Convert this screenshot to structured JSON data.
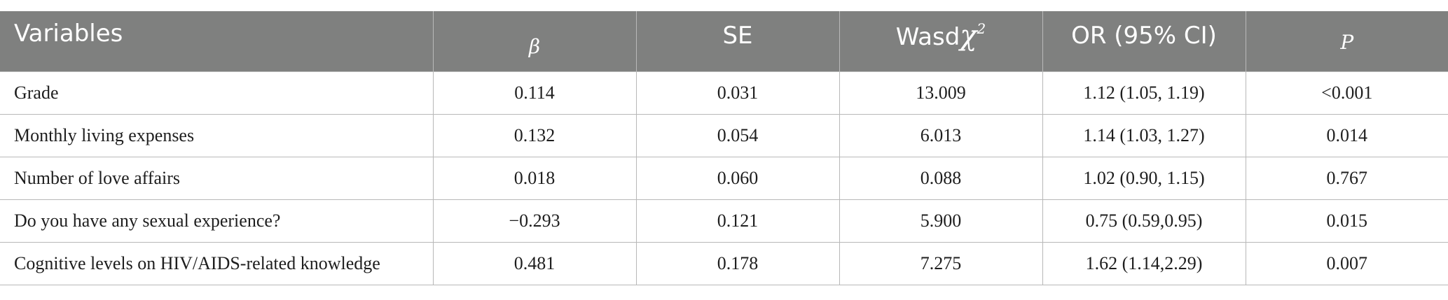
{
  "table": {
    "headers": [
      {
        "label": "Variables"
      },
      {
        "label": "β"
      },
      {
        "label": "SE"
      },
      {
        "label": "Wasd",
        "symbol": "χ",
        "superscript": "2"
      },
      {
        "label": "OR (95% CI)"
      },
      {
        "label": "P"
      }
    ],
    "rows": [
      {
        "variable": "Grade",
        "beta": "0.114",
        "se": "0.031",
        "wasd": "13.009",
        "or_ci": "1.12 (1.05, 1.19)",
        "p": "<0.001"
      },
      {
        "variable": "Monthly living expenses",
        "beta": "0.132",
        "se": "0.054",
        "wasd": "6.013",
        "or_ci": "1.14 (1.03, 1.27)",
        "p": "0.014"
      },
      {
        "variable": "Number of love affairs",
        "beta": "0.018",
        "se": "0.060",
        "wasd": "0.088",
        "or_ci": "1.02 (0.90, 1.15)",
        "p": "0.767"
      },
      {
        "variable": "Do you have any sexual experience?",
        "beta": "−0.293",
        "se": "0.121",
        "wasd": "5.900",
        "or_ci": "0.75 (0.59,0.95)",
        "p": "0.015"
      },
      {
        "variable": "Cognitive levels on HIV/AIDS-related knowledge",
        "beta": "0.481",
        "se": "0.178",
        "wasd": "7.275",
        "or_ci": "1.62 (1.14,2.29)",
        "p": "0.007"
      }
    ]
  }
}
